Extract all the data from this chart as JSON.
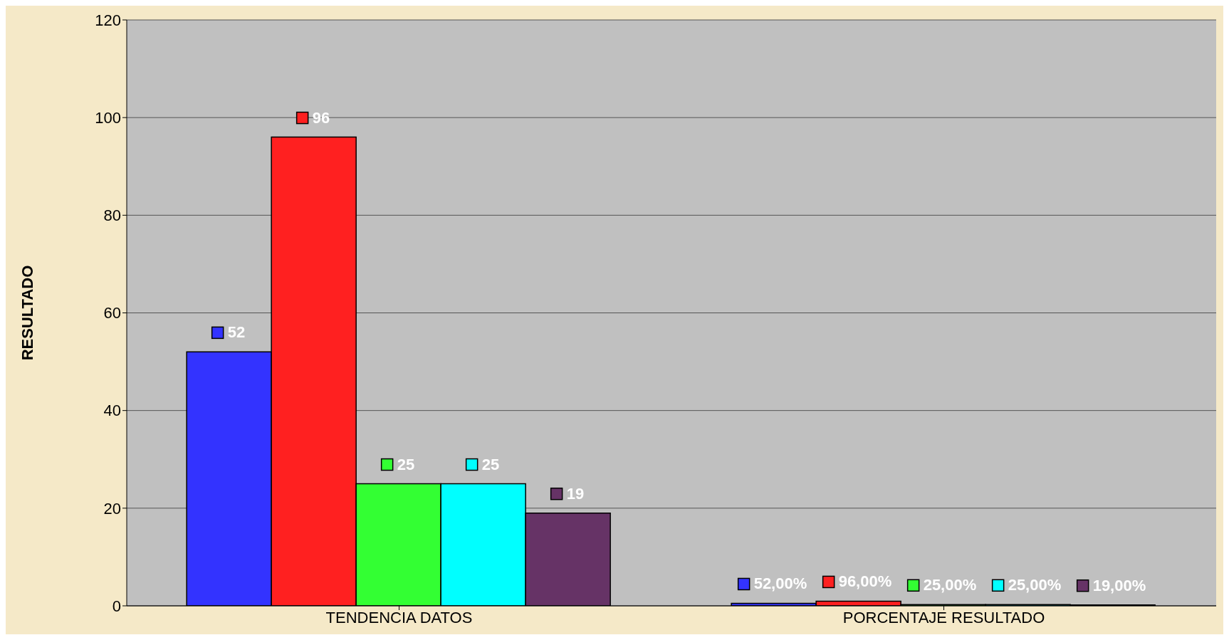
{
  "chart_data": {
    "type": "bar",
    "ylabel": "RESULTADO",
    "categories": [
      "TENDENCIA DATOS",
      "PORCENTAJE RESULTADO"
    ],
    "series": [
      {
        "color": "#3333ff",
        "values": [
          52,
          0.52
        ],
        "value_labels": [
          "52",
          "52,00%"
        ]
      },
      {
        "color": "#ff2020",
        "values": [
          96,
          0.96
        ],
        "value_labels": [
          "96",
          "96,00%"
        ]
      },
      {
        "color": "#33ff33",
        "values": [
          25,
          0.25
        ],
        "value_labels": [
          "25",
          "25,00%"
        ]
      },
      {
        "color": "#00ffff",
        "values": [
          25,
          0.25
        ],
        "value_labels": [
          "25",
          "25,00%"
        ]
      },
      {
        "color": "#663366",
        "values": [
          19,
          0.19
        ],
        "value_labels": [
          "19",
          "19,00%"
        ]
      }
    ],
    "ylim": [
      0,
      120
    ],
    "yticks": [
      0,
      20,
      40,
      60,
      80,
      100,
      120
    ],
    "grid": "y",
    "legend": false
  }
}
